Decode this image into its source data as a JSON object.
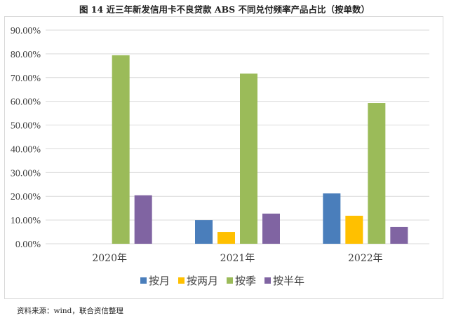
{
  "title": "图 14   近三年新发信用卡不良贷款 ABS 不同兑付频率产品占比（按单数）",
  "source": "资料来源：wind，联合资信整理",
  "chart_data": {
    "type": "bar",
    "title": "图 14   近三年新发信用卡不良贷款 ABS 不同兑付频率产品占比（按单数）",
    "categories": [
      "2020年",
      "2021年",
      "2022年"
    ],
    "series": [
      {
        "name": "按月",
        "color": "#4a7ebb",
        "values": [
          0,
          10.0,
          21.2
        ]
      },
      {
        "name": "按两月",
        "color": "#ffc000",
        "values": [
          0,
          5.0,
          11.8
        ]
      },
      {
        "name": "按季",
        "color": "#9bbb59",
        "values": [
          79.4,
          71.7,
          59.3
        ]
      },
      {
        "name": "按半年",
        "color": "#8064a2",
        "values": [
          20.4,
          12.7,
          7.1
        ]
      }
    ],
    "yticks": [
      "0.00%",
      "10.00%",
      "20.00%",
      "30.00%",
      "40.00%",
      "50.00%",
      "60.00%",
      "70.00%",
      "80.00%",
      "90.00%"
    ],
    "ylim": [
      0,
      90
    ],
    "grid": true,
    "legend": "bottom",
    "xlabel": "",
    "ylabel": ""
  }
}
